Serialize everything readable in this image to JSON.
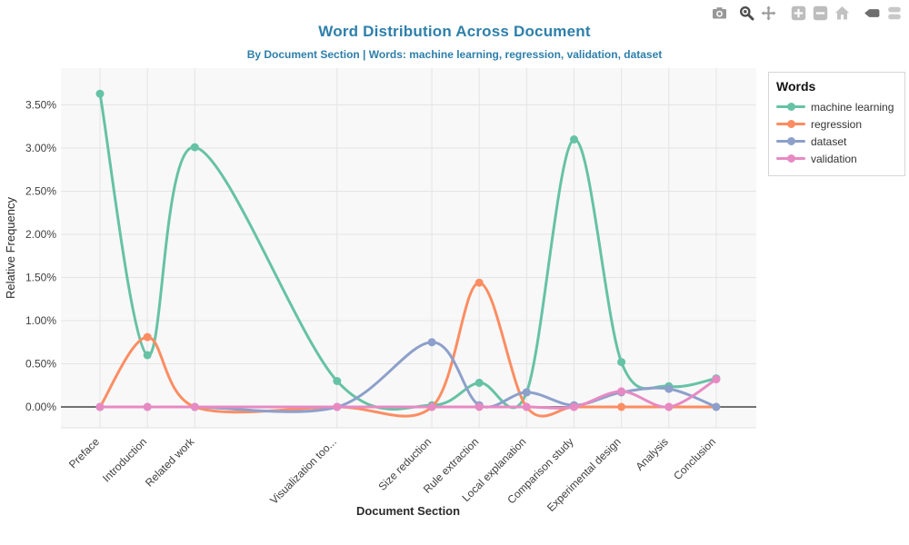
{
  "page": {
    "background": "#ffffff"
  },
  "header": {
    "title": "Word Distribution Across Document",
    "subtitle": "By Document Section | Words: machine learning, regression, validation, dataset",
    "accent_color": "#2d7fab"
  },
  "modebar": {
    "buttons": [
      {
        "name": "camera",
        "active": false
      },
      {
        "name": "zoom",
        "active": true
      },
      {
        "name": "pan",
        "active": false
      },
      {
        "name": "zoom-in",
        "active": false
      },
      {
        "name": "zoom-out",
        "active": false
      },
      {
        "name": "reset-home",
        "active": false
      },
      {
        "name": "hover-closest",
        "active": true
      },
      {
        "name": "hover-compare",
        "active": false
      }
    ]
  },
  "legend": {
    "title": "Words",
    "items": [
      {
        "label": "machine learning",
        "color": "#66c2a5"
      },
      {
        "label": "regression",
        "color": "#fc8d62"
      },
      {
        "label": "dataset",
        "color": "#8da0cb"
      },
      {
        "label": "validation",
        "color": "#e78ac3"
      }
    ]
  },
  "chart_data": {
    "type": "line",
    "line_shape": "spline",
    "title": "Word Distribution Across Document",
    "subtitle": "By Document Section | Words: machine learning, regression, validation, dataset",
    "xlabel": "Document Section",
    "ylabel": "Relative Frequency",
    "categories": [
      "Preface",
      "Introduction",
      "Related work",
      "Visualization too...",
      "Size reduction",
      "Rule extraction",
      "Local explanation",
      "Comparison study",
      "Experimental design",
      "Analysis",
      "Conclusion"
    ],
    "x_units": [
      0,
      1,
      2,
      5,
      7,
      8,
      9,
      10,
      11,
      12,
      13
    ],
    "series": [
      {
        "name": "machine learning",
        "color": "#66c2a5",
        "values": [
          3.63,
          0.6,
          3.01,
          0.3,
          0.02,
          0.28,
          0.17,
          3.1,
          0.52,
          0.24,
          0.33
        ]
      },
      {
        "name": "regression",
        "color": "#fc8d62",
        "values": [
          0,
          0.81,
          0,
          0,
          0,
          1.44,
          0,
          0,
          0,
          0,
          0
        ]
      },
      {
        "name": "dataset",
        "color": "#8da0cb",
        "values": [
          0,
          0,
          0,
          0,
          0.75,
          0.02,
          0.17,
          0.02,
          0.17,
          0.21,
          0
        ]
      },
      {
        "name": "validation",
        "color": "#e78ac3",
        "values": [
          0,
          0,
          0,
          0,
          0,
          0,
          0,
          0,
          0.18,
          0,
          0.32
        ]
      }
    ],
    "y_ticks": [
      "0.00%",
      "0.50%",
      "1.00%",
      "1.50%",
      "2.00%",
      "2.50%",
      "3.00%",
      "3.50%"
    ],
    "ylim": [
      -0.25,
      3.95
    ],
    "grid": true,
    "zeroline": true,
    "legend_position": "top-right",
    "plot_bg": "#f8f8f8",
    "grid_color": "#e4e4e4",
    "zeroline_color": "#444444"
  }
}
